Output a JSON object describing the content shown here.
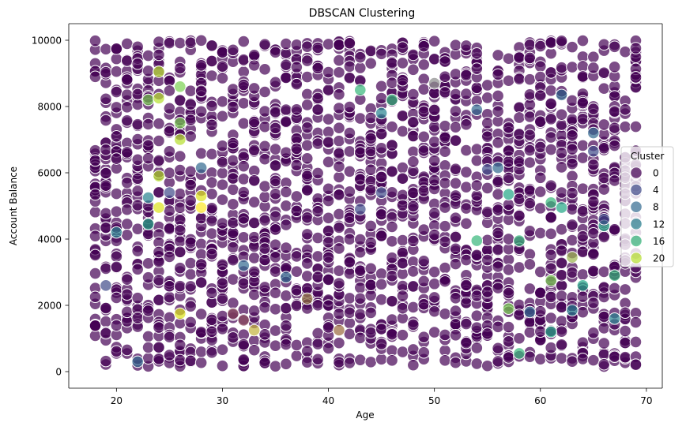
{
  "chart_data": {
    "type": "scatter",
    "title": "DBSCAN Clustering",
    "xlabel": "Age",
    "ylabel": "Account Balance",
    "xlim": [
      15.5,
      71.5
    ],
    "ylim": [
      -500,
      10500
    ],
    "xticks": [
      20,
      30,
      40,
      50,
      60,
      70
    ],
    "yticks": [
      0,
      2000,
      4000,
      6000,
      8000,
      10000
    ],
    "grid": false,
    "marker_opacity": 0.7,
    "legend": {
      "title": "Cluster",
      "placement": "center-right",
      "entries": [
        {
          "label": "0",
          "color": "#440154"
        },
        {
          "label": "4",
          "color": "#3e4a89"
        },
        {
          "label": "8",
          "color": "#31688e"
        },
        {
          "label": "12",
          "color": "#26828e"
        },
        {
          "label": "16",
          "color": "#35b779"
        },
        {
          "label": "20",
          "color": "#b5de2b"
        }
      ]
    },
    "background_series": {
      "name": "0",
      "color": "#440154",
      "x_range": [
        18,
        69
      ],
      "y_range": [
        150,
        10000
      ],
      "points_per_age": 40
    },
    "highlight_points": [
      {
        "x": 19,
        "y": 2600,
        "color": "#3e4a89"
      },
      {
        "x": 20,
        "y": 4200,
        "color": "#26828e"
      },
      {
        "x": 22,
        "y": 300,
        "color": "#31688e"
      },
      {
        "x": 23,
        "y": 5250,
        "color": "#26828e"
      },
      {
        "x": 23,
        "y": 4450,
        "color": "#21a585"
      },
      {
        "x": 23,
        "y": 8200,
        "color": "#7ad151"
      },
      {
        "x": 24,
        "y": 9050,
        "color": "#b5de2b"
      },
      {
        "x": 24,
        "y": 8250,
        "color": "#b5de2b"
      },
      {
        "x": 24,
        "y": 4950,
        "color": "#dce319"
      },
      {
        "x": 24,
        "y": 5900,
        "color": "#b5de2b"
      },
      {
        "x": 25,
        "y": 5400,
        "color": "#3e4a89"
      },
      {
        "x": 26,
        "y": 8600,
        "color": "#7ad151"
      },
      {
        "x": 26,
        "y": 7000,
        "color": "#b5de2b"
      },
      {
        "x": 26,
        "y": 7500,
        "color": "#7ad151"
      },
      {
        "x": 26,
        "y": 1750,
        "color": "#dce319"
      },
      {
        "x": 28,
        "y": 6150,
        "color": "#31688e"
      },
      {
        "x": 28,
        "y": 5300,
        "color": "#dce319"
      },
      {
        "x": 28,
        "y": 4950,
        "color": "#fde725"
      },
      {
        "x": 31,
        "y": 1750,
        "color": "#8a4a5c"
      },
      {
        "x": 32,
        "y": 3200,
        "color": "#31688e"
      },
      {
        "x": 32,
        "y": 1550,
        "color": "#8a4a5c"
      },
      {
        "x": 33,
        "y": 1250,
        "color": "#c2b23c"
      },
      {
        "x": 36,
        "y": 2850,
        "color": "#31688e"
      },
      {
        "x": 38,
        "y": 2200,
        "color": "#8a6a3c"
      },
      {
        "x": 41,
        "y": 1250,
        "color": "#9a6a3c"
      },
      {
        "x": 43,
        "y": 8500,
        "color": "#35b779"
      },
      {
        "x": 43,
        "y": 4900,
        "color": "#3e4a89"
      },
      {
        "x": 45,
        "y": 7800,
        "color": "#26828e"
      },
      {
        "x": 45,
        "y": 5400,
        "color": "#3e4a89"
      },
      {
        "x": 46,
        "y": 8200,
        "color": "#35b779"
      },
      {
        "x": 50,
        "y": 8700,
        "color": "#8a8a8a"
      },
      {
        "x": 54,
        "y": 7900,
        "color": "#31688e"
      },
      {
        "x": 54,
        "y": 3950,
        "color": "#35b779"
      },
      {
        "x": 55,
        "y": 6100,
        "color": "#3e4a89"
      },
      {
        "x": 56,
        "y": 6150,
        "color": "#31688e"
      },
      {
        "x": 57,
        "y": 5350,
        "color": "#21a585"
      },
      {
        "x": 57,
        "y": 1900,
        "color": "#7ad151"
      },
      {
        "x": 58,
        "y": 550,
        "color": "#35b779"
      },
      {
        "x": 58,
        "y": 3950,
        "color": "#35b779"
      },
      {
        "x": 59,
        "y": 1800,
        "color": "#31688e"
      },
      {
        "x": 61,
        "y": 5100,
        "color": "#35b779"
      },
      {
        "x": 61,
        "y": 2750,
        "color": "#7ad151"
      },
      {
        "x": 61,
        "y": 1200,
        "color": "#21a585"
      },
      {
        "x": 62,
        "y": 8350,
        "color": "#31688e"
      },
      {
        "x": 62,
        "y": 4950,
        "color": "#21a585"
      },
      {
        "x": 63,
        "y": 3450,
        "color": "#9ab44c"
      },
      {
        "x": 63,
        "y": 1850,
        "color": "#26828e"
      },
      {
        "x": 64,
        "y": 2600,
        "color": "#21a585"
      },
      {
        "x": 65,
        "y": 6650,
        "color": "#3e4a89"
      },
      {
        "x": 65,
        "y": 7200,
        "color": "#31688e"
      },
      {
        "x": 66,
        "y": 4400,
        "color": "#21a585"
      },
      {
        "x": 66,
        "y": 4600,
        "color": "#3e4a89"
      },
      {
        "x": 67,
        "y": 2900,
        "color": "#35b779"
      },
      {
        "x": 67,
        "y": 1600,
        "color": "#26828e"
      }
    ]
  }
}
